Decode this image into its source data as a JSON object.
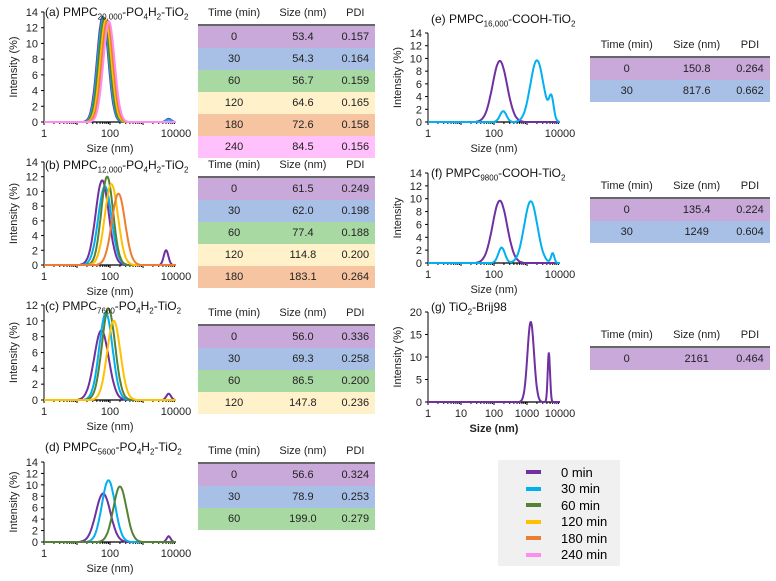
{
  "legend": [
    {
      "label": "0 min",
      "color": "#7030a0"
    },
    {
      "label": "30 min",
      "color": "#00b0f0"
    },
    {
      "label": "60 min",
      "color": "#548235"
    },
    {
      "label": "120 min",
      "color": "#ffc000"
    },
    {
      "label": "180 min",
      "color": "#ed7d31"
    },
    {
      "label": "240 min",
      "color": "#ff8cf0"
    }
  ],
  "row_colors": {
    "0": "#c9a8da",
    "30": "#a9c0e6",
    "60": "#a9d9a2",
    "120": "#fff1c9",
    "180": "#f7c4a2",
    "240": "#ffc0fb"
  },
  "table_headers": [
    "Time (min)",
    "Size (nm)",
    "PDI"
  ],
  "chart_data": [
    {
      "type": "line",
      "id": "a",
      "title": [
        {
          "t": "(a) PMPC"
        },
        {
          "t": "20,000",
          "sub": true
        },
        {
          "t": "-PO"
        },
        {
          "t": "4",
          "sub": true
        },
        {
          "t": "H"
        },
        {
          "t": "2",
          "sub": true
        },
        {
          "t": "-TiO"
        },
        {
          "t": "2",
          "sub": true
        }
      ],
      "xlabel": "Size (nm)",
      "ylabel": "Intensity (%)",
      "xscale": "log",
      "xlim": [
        1,
        10000
      ],
      "xticks": [
        "1",
        "100",
        "10000"
      ],
      "ylim": [
        0,
        14
      ],
      "yticks": [
        "0",
        "2",
        "4",
        "6",
        "8",
        "10",
        "12",
        "14"
      ],
      "series": [
        {
          "time": "0",
          "peaks": [
            [
              60,
              13.4,
              0.17
            ],
            [
              6000,
              0.4,
              0.08
            ]
          ]
        },
        {
          "time": "30",
          "peaks": [
            [
              63,
              13.3,
              0.17
            ],
            [
              6000,
              0.3,
              0.08
            ]
          ]
        },
        {
          "time": "60",
          "peaks": [
            [
              67,
              13.2,
              0.17
            ]
          ]
        },
        {
          "time": "120",
          "peaks": [
            [
              75,
              13.0,
              0.17
            ]
          ]
        },
        {
          "time": "180",
          "peaks": [
            [
              83,
              12.9,
              0.17
            ]
          ]
        },
        {
          "time": "240",
          "peaks": [
            [
              93,
              12.8,
              0.17
            ]
          ]
        }
      ],
      "table": [
        [
          "0",
          "53.4",
          "0.157"
        ],
        [
          "30",
          "54.3",
          "0.164"
        ],
        [
          "60",
          "56.7",
          "0.159"
        ],
        [
          "120",
          "64.6",
          "0.165"
        ],
        [
          "180",
          "72.6",
          "0.158"
        ],
        [
          "240",
          "84.5",
          "0.156"
        ]
      ]
    },
    {
      "type": "line",
      "id": "b",
      "title": [
        {
          "t": "(b) PMPC"
        },
        {
          "t": "12,000",
          "sub": true
        },
        {
          "t": "-PO"
        },
        {
          "t": "4",
          "sub": true
        },
        {
          "t": "H"
        },
        {
          "t": "2",
          "sub": true
        },
        {
          "t": "-TiO"
        },
        {
          "t": "2",
          "sub": true
        }
      ],
      "xlabel": "Size (nm)",
      "ylabel": "Intensity (%)",
      "xscale": "log",
      "xlim": [
        1,
        10000
      ],
      "xticks": [
        "1",
        "100",
        "10000"
      ],
      "ylim": [
        0,
        14
      ],
      "yticks": [
        "0",
        "2",
        "4",
        "6",
        "8",
        "10",
        "12",
        "14"
      ],
      "series": [
        {
          "time": "0",
          "peaks": [
            [
              58,
              11.5,
              0.2
            ],
            [
              5000,
              2.0,
              0.07
            ]
          ]
        },
        {
          "time": "30",
          "peaks": [
            [
              70,
              10.7,
              0.2
            ]
          ]
        },
        {
          "time": "60",
          "peaks": [
            [
              82,
              12.0,
              0.18
            ]
          ]
        },
        {
          "time": "120",
          "peaks": [
            [
              110,
              11.0,
              0.2
            ]
          ]
        },
        {
          "time": "180",
          "peaks": [
            [
              180,
              9.7,
              0.2
            ]
          ]
        }
      ],
      "table": [
        [
          "0",
          "61.5",
          "0.249"
        ],
        [
          "30",
          "62.0",
          "0.198"
        ],
        [
          "60",
          "77.4",
          "0.188"
        ],
        [
          "120",
          "114.8",
          "0.200"
        ],
        [
          "180",
          "183.1",
          "0.264"
        ]
      ]
    },
    {
      "type": "line",
      "id": "c",
      "title": [
        {
          "t": "(c) PMPC"
        },
        {
          "t": "7600",
          "sub": true
        },
        {
          "t": "-PO"
        },
        {
          "t": "4",
          "sub": true
        },
        {
          "t": "H"
        },
        {
          "t": "2",
          "sub": true
        },
        {
          "t": "-TiO"
        },
        {
          "t": "2",
          "sub": true
        }
      ],
      "xlabel": "Size (nm)",
      "ylabel": "Intensity (%)",
      "xscale": "log",
      "xlim": [
        1,
        10000
      ],
      "xticks": [
        "1",
        "100",
        "10000"
      ],
      "ylim": [
        0,
        12
      ],
      "yticks": [
        "0",
        "2",
        "4",
        "6",
        "8",
        "10",
        "12"
      ],
      "series": [
        {
          "time": "0",
          "peaks": [
            [
              55,
              8.8,
              0.22
            ],
            [
              6000,
              0.8,
              0.07
            ]
          ]
        },
        {
          "time": "30",
          "peaks": [
            [
              75,
              11.0,
              0.2
            ]
          ]
        },
        {
          "time": "60",
          "peaks": [
            [
              90,
              11.5,
              0.2
            ]
          ]
        },
        {
          "time": "120",
          "peaks": [
            [
              130,
              10.0,
              0.2
            ]
          ]
        }
      ],
      "table": [
        [
          "0",
          "56.0",
          "0.336"
        ],
        [
          "30",
          "69.3",
          "0.258"
        ],
        [
          "60",
          "86.5",
          "0.200"
        ],
        [
          "120",
          "147.8",
          "0.236"
        ]
      ]
    },
    {
      "type": "line",
      "id": "d",
      "title": [
        {
          "t": "(d) PMPC"
        },
        {
          "t": "5600",
          "sub": true
        },
        {
          "t": "-PO"
        },
        {
          "t": "4",
          "sub": true
        },
        {
          "t": "H"
        },
        {
          "t": "2",
          "sub": true
        },
        {
          "t": "-TiO"
        },
        {
          "t": "2",
          "sub": true
        }
      ],
      "xlabel": "Size (nm)",
      "ylabel": "Intensity (%)",
      "xscale": "log",
      "xlim": [
        1,
        10000
      ],
      "xticks": [
        "1",
        "100",
        "10000"
      ],
      "ylim": [
        0,
        14
      ],
      "yticks": [
        "0",
        "2",
        "4",
        "6",
        "8",
        "10",
        "12",
        "14"
      ],
      "series": [
        {
          "time": "0",
          "peaks": [
            [
              62,
              8.5,
              0.22
            ],
            [
              6000,
              1.0,
              0.06
            ]
          ]
        },
        {
          "time": "30",
          "peaks": [
            [
              90,
              10.8,
              0.2
            ]
          ]
        },
        {
          "time": "60",
          "peaks": [
            [
              200,
              9.7,
              0.2
            ]
          ]
        }
      ],
      "table": [
        [
          "0",
          "56.6",
          "0.324"
        ],
        [
          "30",
          "78.9",
          "0.253"
        ],
        [
          "60",
          "199.0",
          "0.279"
        ]
      ]
    },
    {
      "type": "line",
      "id": "e",
      "title": [
        {
          "t": "(e) PMPC"
        },
        {
          "t": "16,000",
          "sub": true
        },
        {
          "t": "-COOH-TiO"
        },
        {
          "t": "2",
          "sub": true
        }
      ],
      "xlabel": "Size (nm)",
      "ylabel": "Intensity (%)",
      "xscale": "log",
      "xlim": [
        1,
        10000
      ],
      "xticks": [
        "1",
        "100",
        "10000"
      ],
      "ylim": [
        0,
        14
      ],
      "yticks": [
        "0",
        "2",
        "4",
        "6",
        "8",
        "10",
        "12",
        "14"
      ],
      "series": [
        {
          "time": "0",
          "peaks": [
            [
              150,
              9.6,
              0.22
            ]
          ]
        },
        {
          "time": "30",
          "peaks": [
            [
              190,
              1.7,
              0.1
            ],
            [
              2000,
              9.7,
              0.2
            ],
            [
              5500,
              3.4,
              0.07
            ]
          ]
        }
      ],
      "table": [
        [
          "0",
          "150.8",
          "0.264"
        ],
        [
          "30",
          "817.6",
          "0.662"
        ]
      ]
    },
    {
      "type": "line",
      "id": "f",
      "title": [
        {
          "t": "(f) PMPC"
        },
        {
          "t": "9800",
          "sub": true
        },
        {
          "t": "-COOH-TiO"
        },
        {
          "t": "2",
          "sub": true
        }
      ],
      "xlabel": "Size (nm)",
      "ylabel": "Intensity",
      "xscale": "log",
      "xlim": [
        1,
        10000
      ],
      "xticks": [
        "1",
        "100",
        "10000"
      ],
      "ylim": [
        0,
        14
      ],
      "yticks": [
        "0",
        "2",
        "4",
        "6",
        "8",
        "10",
        "12",
        "14"
      ],
      "series": [
        {
          "time": "0",
          "peaks": [
            [
              150,
              9.7,
              0.22
            ]
          ]
        },
        {
          "time": "30",
          "peaks": [
            [
              170,
              2.4,
              0.1
            ],
            [
              1300,
              9.6,
              0.2
            ],
            [
              6000,
              1.5,
              0.05
            ]
          ]
        }
      ],
      "table": [
        [
          "0",
          "135.4",
          "0.224"
        ],
        [
          "30",
          "1249",
          "0.604"
        ]
      ]
    },
    {
      "type": "line",
      "id": "g",
      "title": [
        {
          "t": "(g) TiO"
        },
        {
          "t": "2",
          "sub": true
        },
        {
          "t": "-Brij98"
        }
      ],
      "xlabel": "Size (nm)",
      "ylabel": "Intensity (%)",
      "xscale": "log",
      "xlim": [
        1,
        10000
      ],
      "xticks": [
        "1",
        "10",
        "100",
        "1000",
        "10000"
      ],
      "ylim": [
        0,
        20
      ],
      "yticks": [
        "0",
        "5",
        "10",
        "15",
        "20"
      ],
      "series": [
        {
          "time": "0",
          "peaks": [
            [
              1300,
              17.8,
              0.1
            ],
            [
              4600,
              11.0,
              0.035
            ]
          ]
        }
      ],
      "table": [
        [
          "0",
          "2161",
          "0.464"
        ]
      ]
    }
  ]
}
